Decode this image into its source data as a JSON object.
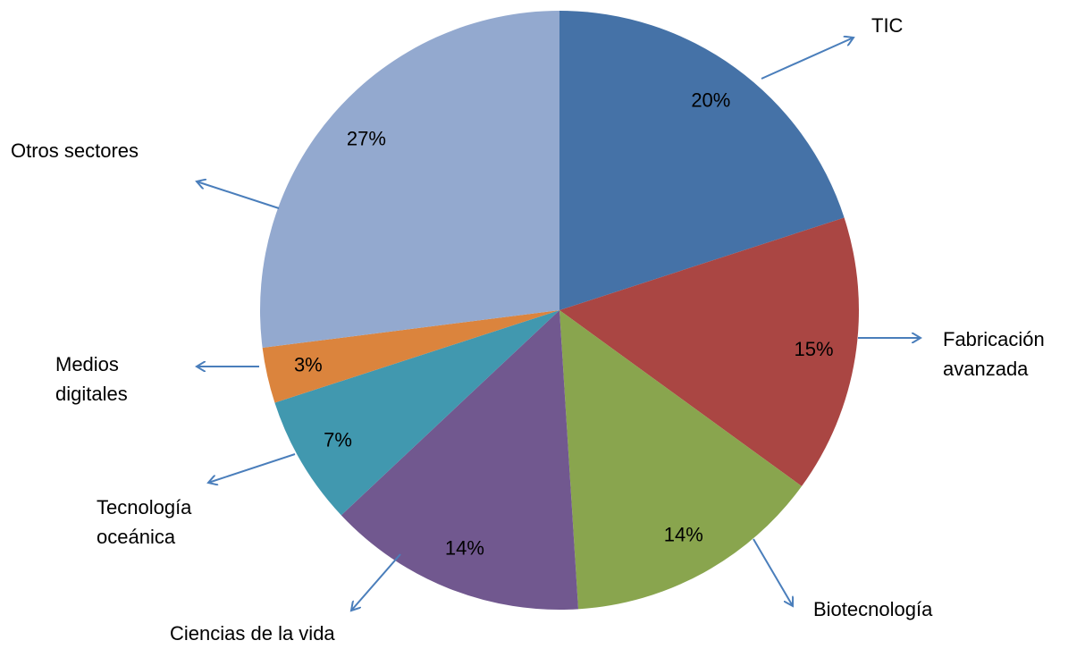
{
  "chart_data": {
    "type": "pie",
    "categories": [
      "TIC",
      "Fabricación avanzada",
      "Biotecnología",
      "Ciencias de la vida",
      "Tecnología oceánica",
      "Medios digitales",
      "Otros sectores"
    ],
    "values": [
      20,
      15,
      14,
      14,
      7,
      3,
      27
    ],
    "value_labels": [
      "20%",
      "15%",
      "14%",
      "14%",
      "7%",
      "3%",
      "27%"
    ],
    "colors": [
      "#4572a7",
      "#aa4643",
      "#89a54e",
      "#71588f",
      "#4198af",
      "#db843d",
      "#93a9cf"
    ]
  }
}
